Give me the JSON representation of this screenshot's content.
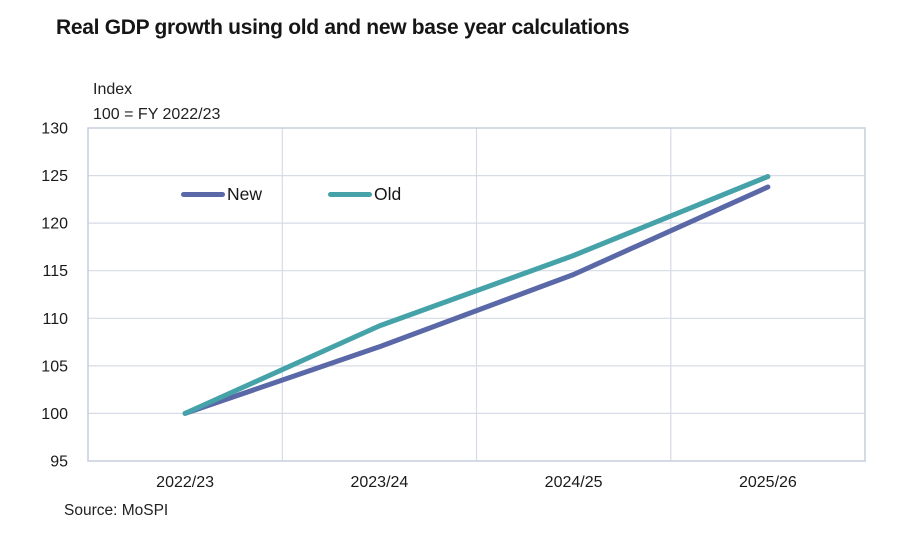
{
  "title": "Real GDP growth using old and new base year calculations",
  "annotation": {
    "line1": "Index",
    "line2": "100 = FY 2022/23"
  },
  "source": "Source: MoSPI",
  "legend": [
    {
      "label": "New",
      "color": "#5A68A8"
    },
    {
      "label": "Old",
      "color": "#45A2A8"
    }
  ],
  "colors": {
    "new_line": "#5A68A8",
    "old_line": "#45A2A8",
    "gridline": "#d7dbe6",
    "plot_border": "#c7cedf",
    "text": "#1a1a1a"
  },
  "chart_data": {
    "type": "line",
    "title": "Real GDP growth using old and new base year calculations",
    "ylabel": "Index, 100 = FY 2022/23",
    "xlabel": "",
    "categories": [
      "2022/23",
      "2023/24",
      "2024/25",
      "2025/26"
    ],
    "series": [
      {
        "name": "New",
        "color": "#5A68A8",
        "values": [
          100,
          107.0,
          114.6,
          123.8
        ]
      },
      {
        "name": "Old",
        "color": "#45A2A8",
        "values": [
          100,
          109.2,
          116.6,
          124.9
        ]
      }
    ],
    "ylim": [
      95,
      130
    ],
    "yticks": [
      95,
      100,
      105,
      110,
      115,
      120,
      125,
      130
    ],
    "grid": true,
    "legend_position": "inside-top-left",
    "source": "Source: MoSPI"
  }
}
